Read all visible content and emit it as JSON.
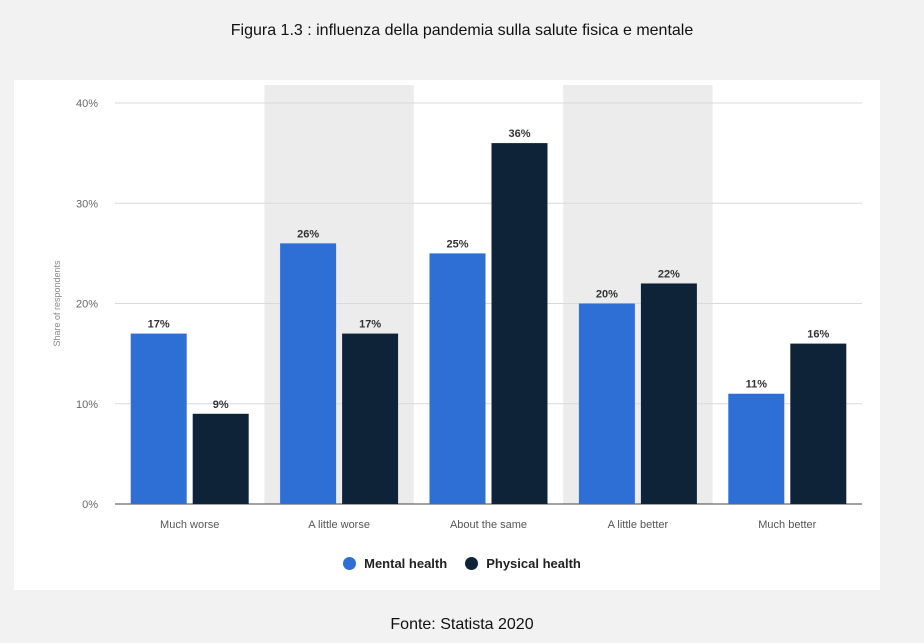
{
  "title": "Figura 1.3 : influenza della pandemia sulla salute fisica e mentale",
  "source": "Fonte: Statista 2020",
  "chart_data": {
    "type": "bar",
    "ylabel": "Share of respondents",
    "xlabel": "",
    "ylim": [
      0,
      40
    ],
    "yticks": [
      "0%",
      "10%",
      "20%",
      "30%",
      "40%"
    ],
    "categories": [
      "Much worse",
      "A little worse",
      "About the same",
      "A little better",
      "Much better"
    ],
    "series": [
      {
        "name": "Mental health",
        "color": "#2e6fd6",
        "values": [
          17,
          26,
          25,
          20,
          11
        ],
        "labels": [
          "17%",
          "26%",
          "25%",
          "20%",
          "11%"
        ]
      },
      {
        "name": "Physical health",
        "color": "#0f2338",
        "values": [
          9,
          17,
          36,
          22,
          16
        ],
        "labels": [
          "9%",
          "17%",
          "36%",
          "22%",
          "16%"
        ]
      }
    ],
    "legend_position": "bottom-center",
    "grid": true
  }
}
